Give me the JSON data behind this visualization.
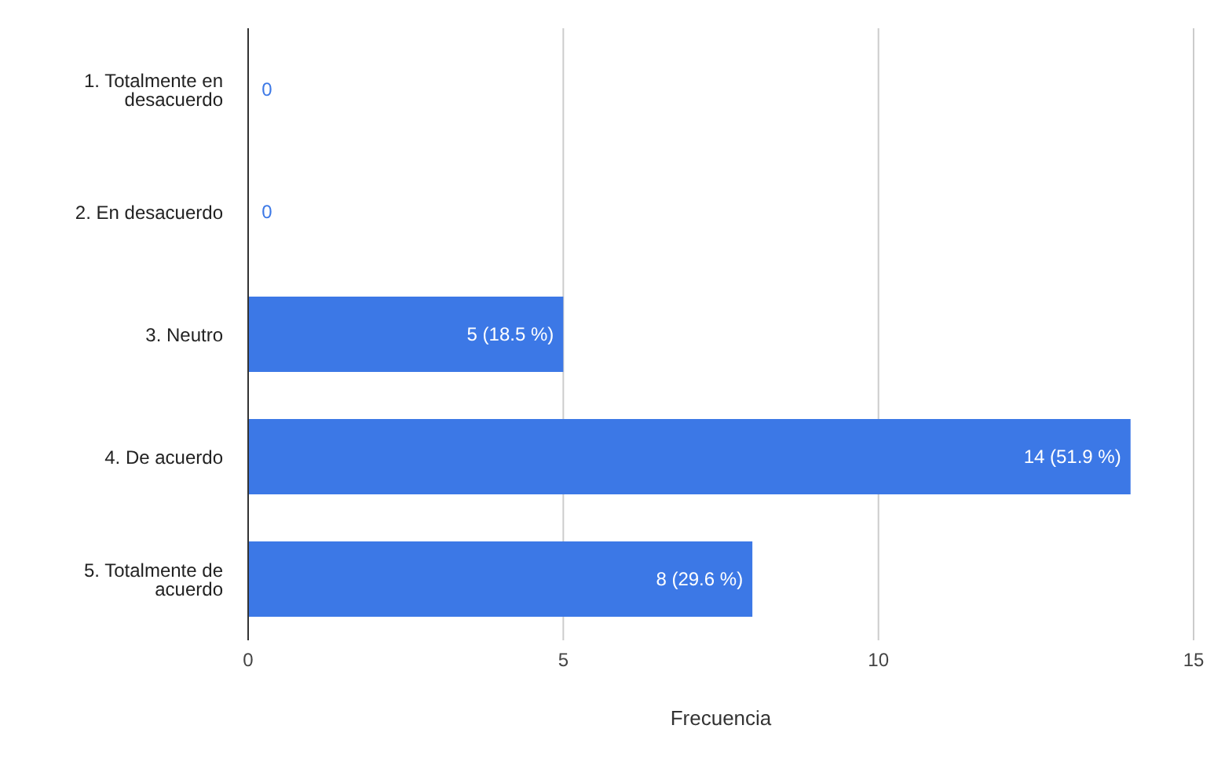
{
  "chart_data": {
    "type": "bar",
    "orientation": "horizontal",
    "xlabel": "Frecuencia",
    "categories": [
      "1. Totalmente en desacuerdo",
      "2. En desacuerdo",
      "3. Neutro",
      "4. De acuerdo",
      "5. Totalmente de acuerdo"
    ],
    "values": [
      0,
      0,
      5,
      14,
      8
    ],
    "value_labels": [
      "0",
      "0",
      "5 (18.5 %)",
      "14 (51.9 %)",
      "8 (29.6 %)"
    ],
    "color": "#3c78e6",
    "xlim": [
      0,
      15
    ],
    "xticks": [
      0,
      5,
      10,
      15
    ],
    "grid": "x",
    "legend": false
  }
}
